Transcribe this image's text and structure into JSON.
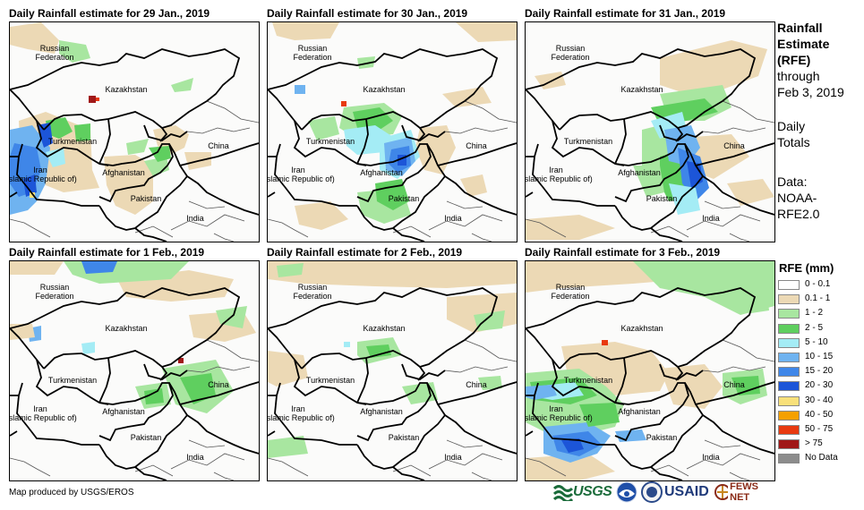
{
  "panels": [
    {
      "title": "Daily Rainfall estimate for 29 Jan., 2019"
    },
    {
      "title": "Daily Rainfall estimate for 30 Jan., 2019"
    },
    {
      "title": "Daily Rainfall estimate for 31 Jan., 2019"
    },
    {
      "title": "Daily Rainfall estimate for 1 Feb., 2019"
    },
    {
      "title": "Daily Rainfall estimate for 2 Feb., 2019"
    },
    {
      "title": "Daily Rainfall estimate for 3 Feb., 2019"
    }
  ],
  "map_labels": {
    "russia": "Russian\nFederation",
    "kazakhstan": "Kazakhstan",
    "turkmenistan": "Turkmenistan",
    "iran": "Iran\n(Islamic Republic of)",
    "afghanistan": "Afghanistan",
    "pakistan": "Pakistan",
    "china": "China",
    "india": "India"
  },
  "sidebar": {
    "heading": "Rainfall\nEstimate\n(RFE)",
    "through": "through\nFeb 3, 2019",
    "totals": "Daily\nTotals",
    "data_source": "Data:\nNOAA-\nRFE2.0"
  },
  "legend": {
    "title": "RFE (mm)",
    "items": [
      {
        "label": "0 - 0.1",
        "color": "#ffffff"
      },
      {
        "label": "0.1 - 1",
        "color": "#ecd9b5"
      },
      {
        "label": "1 - 2",
        "color": "#a8e6a0"
      },
      {
        "label": "2 - 5",
        "color": "#5fcf5f"
      },
      {
        "label": "5 - 10",
        "color": "#a4ecf5"
      },
      {
        "label": "10 - 15",
        "color": "#6fb3f0"
      },
      {
        "label": "15 - 20",
        "color": "#3f86e8"
      },
      {
        "label": "20 - 30",
        "color": "#1c55d8"
      },
      {
        "label": "30 - 40",
        "color": "#f8e07a"
      },
      {
        "label": "40 - 50",
        "color": "#f5a000"
      },
      {
        "label": "50 - 75",
        "color": "#e83a10"
      },
      {
        "label": "> 75",
        "color": "#a01818"
      },
      {
        "label": "No Data",
        "color": "#8c8c8c"
      }
    ]
  },
  "credit": "Map produced by USGS/EROS",
  "logos": {
    "usgs": "USGS",
    "usaid": "USAID",
    "fews": "FEWS NET"
  }
}
